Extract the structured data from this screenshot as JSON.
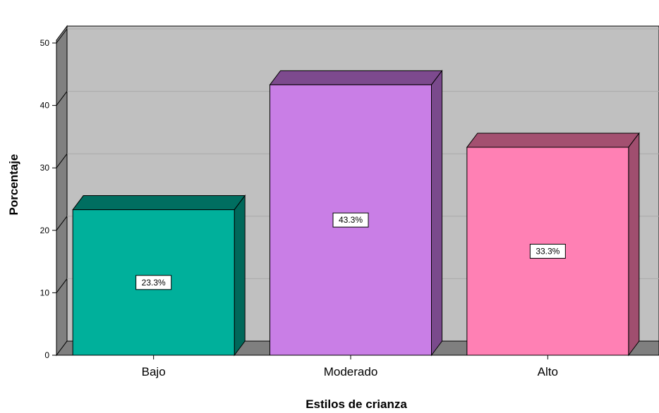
{
  "chart_data": {
    "type": "bar",
    "categories": [
      "Bajo",
      "Moderado",
      "Alto"
    ],
    "values": [
      23.3,
      43.3,
      33.3
    ],
    "data_labels": [
      "23.3%",
      "43.3%",
      "33.3%"
    ],
    "xlabel": "Estilos de crianza",
    "ylabel": "Porcentaje",
    "ylim": [
      0,
      50
    ],
    "yticks": [
      0,
      10,
      20,
      30,
      40,
      50
    ],
    "grid": true,
    "style": "3d",
    "colors": {
      "bars": [
        {
          "front": "#00b09b",
          "top": "#006e60",
          "side": "#00685a"
        },
        {
          "front": "#c97ee6",
          "top": "#7d4a8e",
          "side": "#7a4a8c"
        },
        {
          "front": "#ff80b4",
          "top": "#a35070",
          "side": "#a04e6f"
        }
      ],
      "back_wall": "#c0c0c0",
      "side_wall": "#808080",
      "floor": "#7f7f7f",
      "gridline": "#a9a9a9"
    }
  }
}
